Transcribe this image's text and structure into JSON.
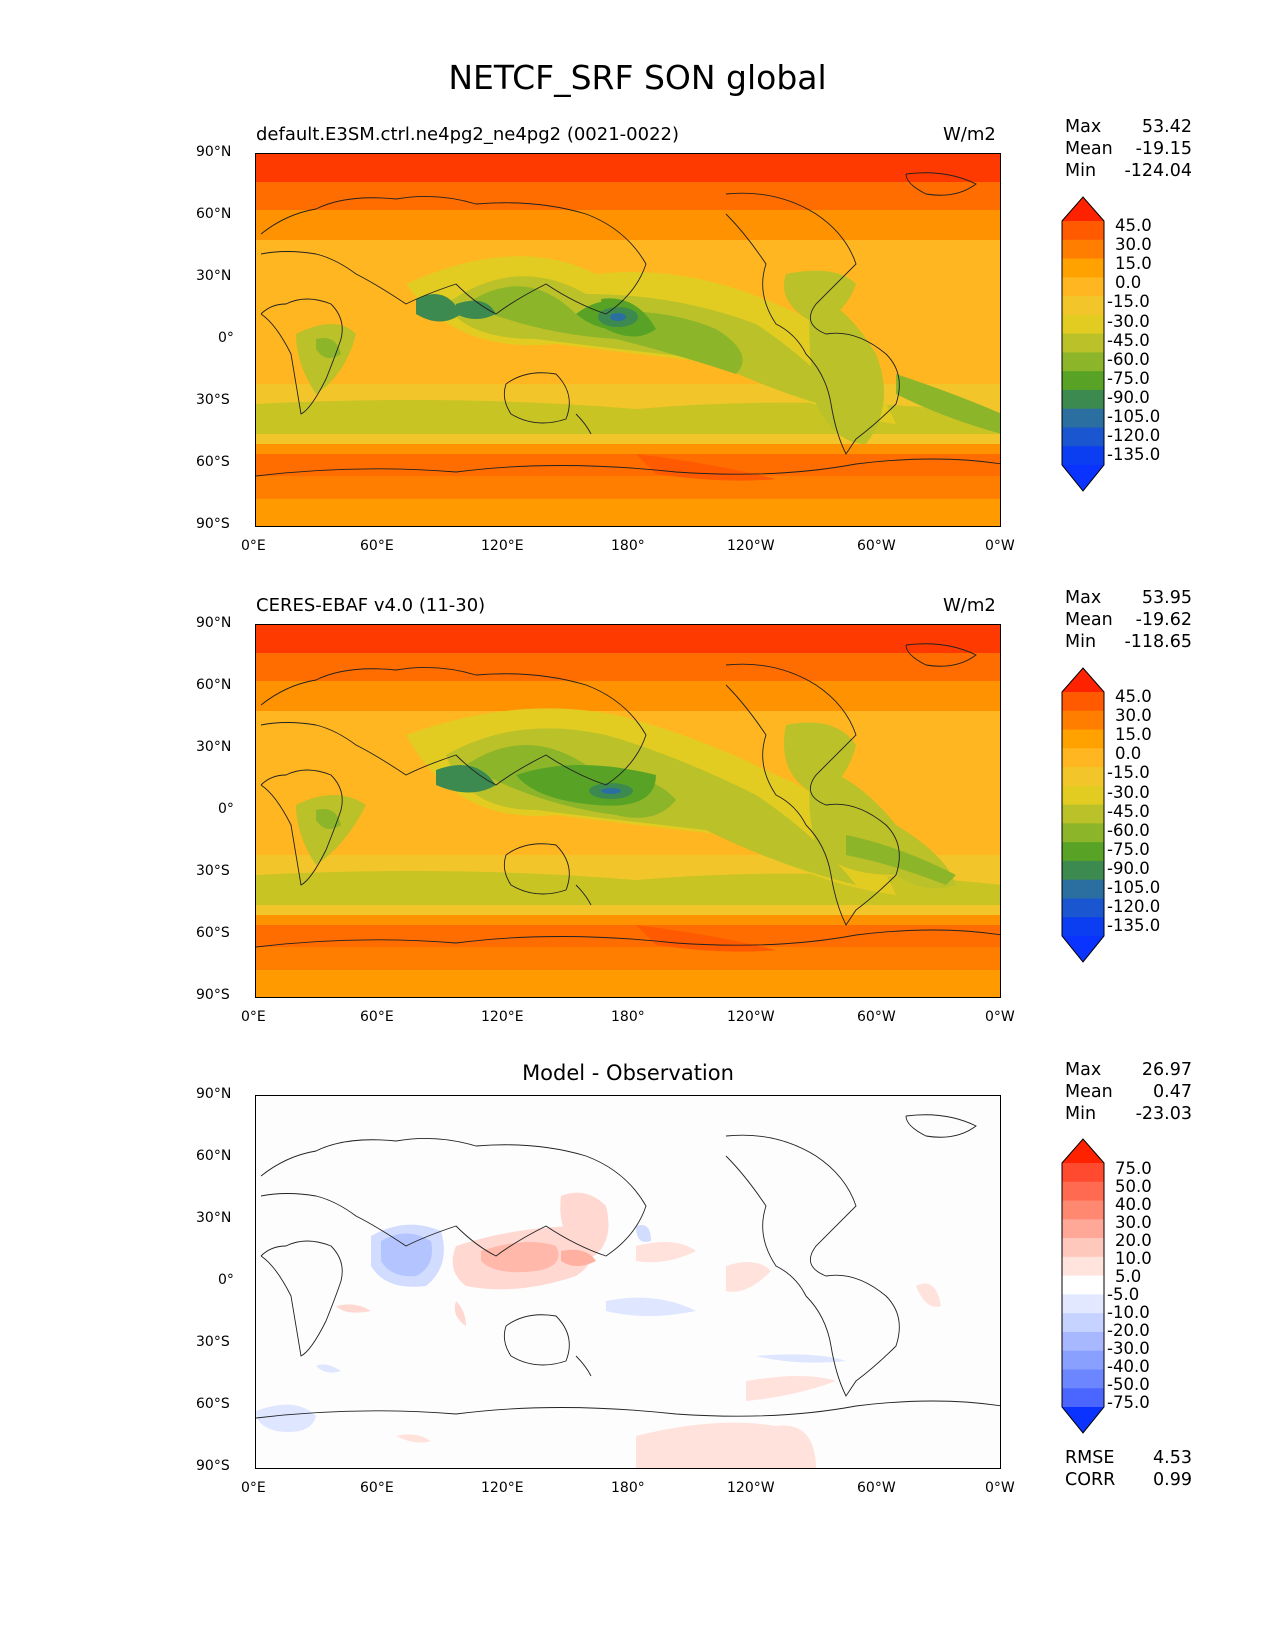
{
  "page": {
    "title": "NETCF_SRF SON global"
  },
  "axes": {
    "lat_labels": [
      "90°N",
      "60°N",
      "30°N",
      "0°",
      "30°S",
      "60°S",
      "90°S"
    ],
    "lon_labels": [
      "0°E",
      "60°E",
      "120°E",
      "180°",
      "120°W",
      "60°W",
      "0°W"
    ]
  },
  "panels": [
    {
      "title_left": "default.E3SM.ctrl.ne4pg2_ne4pg2 (0021-0022)",
      "title_right": "W/m2",
      "title_center": "",
      "stats": [
        {
          "label": "Max",
          "value": "53.42"
        },
        {
          "label": "Mean",
          "value": "-19.15"
        },
        {
          "label": "Min",
          "value": "-124.04"
        }
      ],
      "colorbar": {
        "labels": [
          "45.0",
          "30.0",
          "15.0",
          "0.0",
          "-15.0",
          "-30.0",
          "-45.0",
          "-60.0",
          "-75.0",
          "-90.0",
          "-105.0",
          "-120.0",
          "-135.0"
        ],
        "colors": [
          "#ff2200",
          "#ff5a00",
          "#ff7e00",
          "#ffa200",
          "#ffb620",
          "#f2c62a",
          "#e2cc22",
          "#bbc128",
          "#8cb52a",
          "#58a325",
          "#3d8a50",
          "#2a6fa0",
          "#1a56d0",
          "#0a3ef0",
          "#0a33ff"
        ]
      },
      "footer": []
    },
    {
      "title_left": "CERES-EBAF v4.0 (11-30)",
      "title_right": "W/m2",
      "title_center": "",
      "stats": [
        {
          "label": "Max",
          "value": "53.95"
        },
        {
          "label": "Mean",
          "value": "-19.62"
        },
        {
          "label": "Min",
          "value": "-118.65"
        }
      ],
      "colorbar": {
        "labels": [
          "45.0",
          "30.0",
          "15.0",
          "0.0",
          "-15.0",
          "-30.0",
          "-45.0",
          "-60.0",
          "-75.0",
          "-90.0",
          "-105.0",
          "-120.0",
          "-135.0"
        ],
        "colors": [
          "#ff2200",
          "#ff5a00",
          "#ff7e00",
          "#ffa200",
          "#ffb620",
          "#f2c62a",
          "#e2cc22",
          "#bbc128",
          "#8cb52a",
          "#58a325",
          "#3d8a50",
          "#2a6fa0",
          "#1a56d0",
          "#0a3ef0",
          "#0a33ff"
        ]
      },
      "footer": []
    },
    {
      "title_left": "",
      "title_right": "",
      "title_center": "Model - Observation",
      "stats": [
        {
          "label": "Max",
          "value": "26.97"
        },
        {
          "label": "Mean",
          "value": "0.47"
        },
        {
          "label": "Min",
          "value": "-23.03"
        }
      ],
      "colorbar": {
        "labels": [
          "75.0",
          "50.0",
          "40.0",
          "30.0",
          "20.0",
          "10.0",
          "5.0",
          "-5.0",
          "-10.0",
          "-20.0",
          "-30.0",
          "-40.0",
          "-50.0",
          "-75.0"
        ],
        "colors": [
          "#ff2200",
          "#ff4a30",
          "#ff6a50",
          "#ff8870",
          "#ffa898",
          "#ffc8bc",
          "#ffe4de",
          "#ffffff",
          "#e2e8ff",
          "#c6d2ff",
          "#a8b8ff",
          "#8aa0ff",
          "#6c86ff",
          "#4a66ff",
          "#0a33ff"
        ]
      },
      "footer": [
        {
          "label": "RMSE",
          "value": "4.53"
        },
        {
          "label": "CORR",
          "value": "0.99"
        }
      ]
    }
  ]
}
